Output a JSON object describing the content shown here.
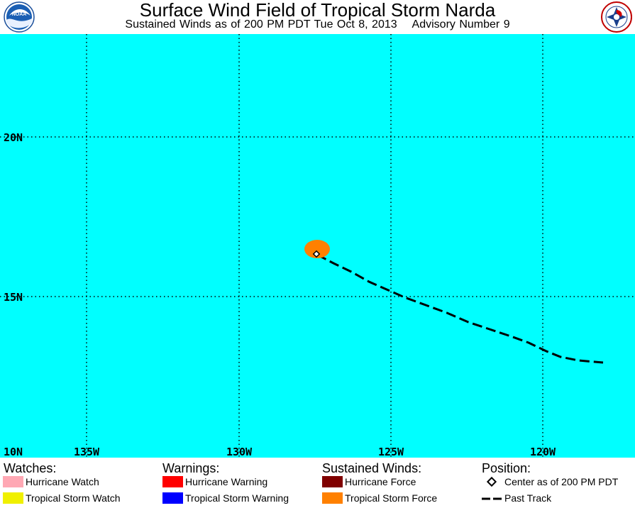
{
  "header": {
    "title": "Surface Wind Field of Tropical Storm Narda",
    "subtitle": "Sustained Winds as of 200 PM PDT Tue Oct 8, 2013    Advisory Number 9",
    "left_logo": "noaa-logo",
    "left_logo_text": "NOAA",
    "right_logo": "nws-logo"
  },
  "map": {
    "ocean_color": "#00FFFF",
    "grid_color": "#000000",
    "lat_labels": [
      "20N",
      "15N",
      "10N"
    ],
    "lon_labels": [
      "135W",
      "130W",
      "125W",
      "120W"
    ],
    "storm": {
      "center_label": "storm-center",
      "wind_field_color": "#FF8000"
    },
    "past_track_color": "#000000"
  },
  "legend": {
    "watches": {
      "heading": "Watches:",
      "items": [
        {
          "label": "Hurricane Watch",
          "color": "#FFA8B4"
        },
        {
          "label": "Tropical Storm Watch",
          "color": "#F0F000"
        }
      ]
    },
    "warnings": {
      "heading": "Warnings:",
      "items": [
        {
          "label": "Hurricane Warning",
          "color": "#FF0000"
        },
        {
          "label": "Tropical Storm Warning",
          "color": "#0000FF"
        }
      ]
    },
    "winds": {
      "heading": "Sustained Winds:",
      "items": [
        {
          "label": "Hurricane Force",
          "color": "#800000"
        },
        {
          "label": "Tropical Storm Force",
          "color": "#FF8000"
        }
      ]
    },
    "position": {
      "heading": "Position:",
      "items": [
        {
          "label": "Center as of 200 PM PDT",
          "icon": "diamond-icon"
        },
        {
          "label": "Past Track",
          "icon": "dashed-line-icon"
        }
      ]
    }
  }
}
